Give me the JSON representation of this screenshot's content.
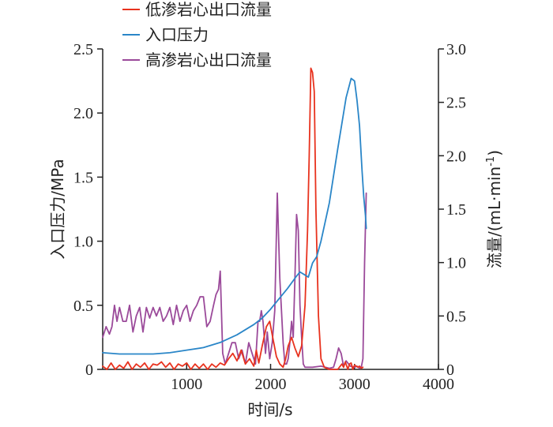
{
  "chart_data": {
    "type": "line",
    "title": "",
    "xlabel": "时间/s",
    "ylabel_left": "入口压力/MPa",
    "ylabel_right_main": "流量/(mL·min",
    "ylabel_right_sup": "-1",
    "ylabel_right_close": ")",
    "xlim": [
      0,
      4000
    ],
    "ylim_left": [
      0,
      2.5
    ],
    "ylim_right": [
      0,
      3.0
    ],
    "x_ticks": [
      1000,
      2000,
      3000,
      4000
    ],
    "x_tick_labels": [
      "1000",
      "2000",
      "3000",
      "4000"
    ],
    "y_left_ticks": [
      0,
      0.5,
      1.0,
      1.5,
      2.0,
      2.5
    ],
    "y_left_tick_labels": [
      "0",
      "0.5",
      "1.0",
      "1.5",
      "2.0",
      "2.5"
    ],
    "y_right_ticks": [
      0,
      0.5,
      1.0,
      1.5,
      2.0,
      2.5,
      3.0
    ],
    "y_right_tick_labels": [
      "0",
      "0.5",
      "1.0",
      "1.5",
      "2.0",
      "2.5",
      "3.0"
    ],
    "grid": false,
    "legend_position": "top-left",
    "series": [
      {
        "name": "低渗岩心出口流量",
        "axis": "right",
        "color": "#e8321e",
        "x": [
          0,
          50,
          100,
          150,
          200,
          250,
          300,
          350,
          400,
          450,
          500,
          550,
          600,
          650,
          700,
          750,
          800,
          850,
          900,
          950,
          1000,
          1050,
          1100,
          1150,
          1200,
          1250,
          1300,
          1350,
          1400,
          1450,
          1500,
          1550,
          1600,
          1650,
          1700,
          1750,
          1800,
          1830,
          1860,
          1900,
          1950,
          1990,
          2030,
          2070,
          2110,
          2150,
          2180,
          2210,
          2250,
          2290,
          2330,
          2370,
          2410,
          2440,
          2460,
          2480,
          2500,
          2520,
          2540,
          2570,
          2600,
          2640,
          2700,
          2800,
          2850,
          2870,
          2890,
          2920,
          2940,
          2960,
          2980,
          3000,
          3020,
          3040,
          3060,
          3080,
          3100
        ],
        "values": [
          0.03,
          0.0,
          0.06,
          0.0,
          0.04,
          0.01,
          0.07,
          0.0,
          0.05,
          0.02,
          0.06,
          0.0,
          0.05,
          0.04,
          0.07,
          0.02,
          0.06,
          0.0,
          0.05,
          0.03,
          0.06,
          0.0,
          0.05,
          0.01,
          0.05,
          0.0,
          0.05,
          0.02,
          0.06,
          0.04,
          0.1,
          0.15,
          0.08,
          0.18,
          0.05,
          0.1,
          0.03,
          0.18,
          0.06,
          0.22,
          0.4,
          0.45,
          0.28,
          0.12,
          0.05,
          0.02,
          0.1,
          0.22,
          0.3,
          0.2,
          0.12,
          0.22,
          0.6,
          1.3,
          2.0,
          2.82,
          2.78,
          2.6,
          1.5,
          0.5,
          0.1,
          0.02,
          0.0,
          0.0,
          0.05,
          0.02,
          0.07,
          0.0,
          0.05,
          0.06,
          0.0,
          0.04,
          0.03,
          0.02,
          0.03,
          0.01,
          0.02
        ]
      },
      {
        "name": "入口压力",
        "axis": "left",
        "color": "#2a86c8",
        "x": [
          0,
          200,
          400,
          600,
          800,
          1000,
          1200,
          1400,
          1600,
          1800,
          1900,
          2000,
          2100,
          2200,
          2300,
          2350,
          2400,
          2450,
          2500,
          2550,
          2600,
          2700,
          2800,
          2900,
          2960,
          3000,
          3030,
          3060,
          3090,
          3110,
          3130,
          3140
        ],
        "values": [
          0.13,
          0.12,
          0.12,
          0.12,
          0.13,
          0.15,
          0.17,
          0.21,
          0.27,
          0.35,
          0.4,
          0.47,
          0.55,
          0.63,
          0.72,
          0.76,
          0.74,
          0.72,
          0.83,
          0.88,
          1.0,
          1.3,
          1.72,
          2.12,
          2.27,
          2.25,
          2.1,
          1.9,
          1.55,
          1.35,
          1.2,
          1.1
        ]
      },
      {
        "name": "高渗岩心出口流量",
        "axis": "right",
        "color": "#9b4a9a",
        "x": [
          0,
          40,
          80,
          110,
          140,
          170,
          200,
          240,
          280,
          320,
          360,
          400,
          440,
          480,
          520,
          560,
          600,
          640,
          680,
          720,
          760,
          800,
          840,
          880,
          920,
          960,
          1000,
          1040,
          1080,
          1120,
          1160,
          1200,
          1240,
          1280,
          1320,
          1350,
          1380,
          1400,
          1430,
          1460,
          1500,
          1540,
          1580,
          1620,
          1660,
          1700,
          1740,
          1780,
          1820,
          1850,
          1870,
          1890,
          1910,
          1940,
          1960,
          1990,
          2020,
          2050,
          2080,
          2110,
          2130,
          2150,
          2170,
          2190,
          2210,
          2230,
          2250,
          2270,
          2290,
          2310,
          2330,
          2350,
          2370,
          2390,
          2410,
          2430,
          2450,
          2500,
          2600,
          2700,
          2750,
          2780,
          2810,
          2840,
          2870,
          2900,
          2950,
          3000,
          3030,
          3060,
          3080,
          3100,
          3120,
          3140
        ],
        "values": [
          0.3,
          0.4,
          0.33,
          0.4,
          0.6,
          0.45,
          0.58,
          0.45,
          0.45,
          0.6,
          0.35,
          0.5,
          0.58,
          0.35,
          0.58,
          0.48,
          0.58,
          0.5,
          0.58,
          0.45,
          0.5,
          0.58,
          0.42,
          0.6,
          0.45,
          0.55,
          0.6,
          0.45,
          0.55,
          0.6,
          0.68,
          0.68,
          0.4,
          0.45,
          0.6,
          0.7,
          0.75,
          0.92,
          0.15,
          0.05,
          0.15,
          0.25,
          0.25,
          0.1,
          0.18,
          0.05,
          0.25,
          0.15,
          0.05,
          0.45,
          0.45,
          0.55,
          0.45,
          0.15,
          0.35,
          0.1,
          0.25,
          0.55,
          1.65,
          0.85,
          0.55,
          0.25,
          0.05,
          0.05,
          0.1,
          0.25,
          0.45,
          0.3,
          0.85,
          1.45,
          1.3,
          0.6,
          0.3,
          0.05,
          0.02,
          0.02,
          0.02,
          0.02,
          0.03,
          0.01,
          0.02,
          0.1,
          0.2,
          0.15,
          0.03,
          0.08,
          0.03,
          0.02,
          0.03,
          0.01,
          0.02,
          0.1,
          1.0,
          1.65
        ]
      }
    ]
  }
}
